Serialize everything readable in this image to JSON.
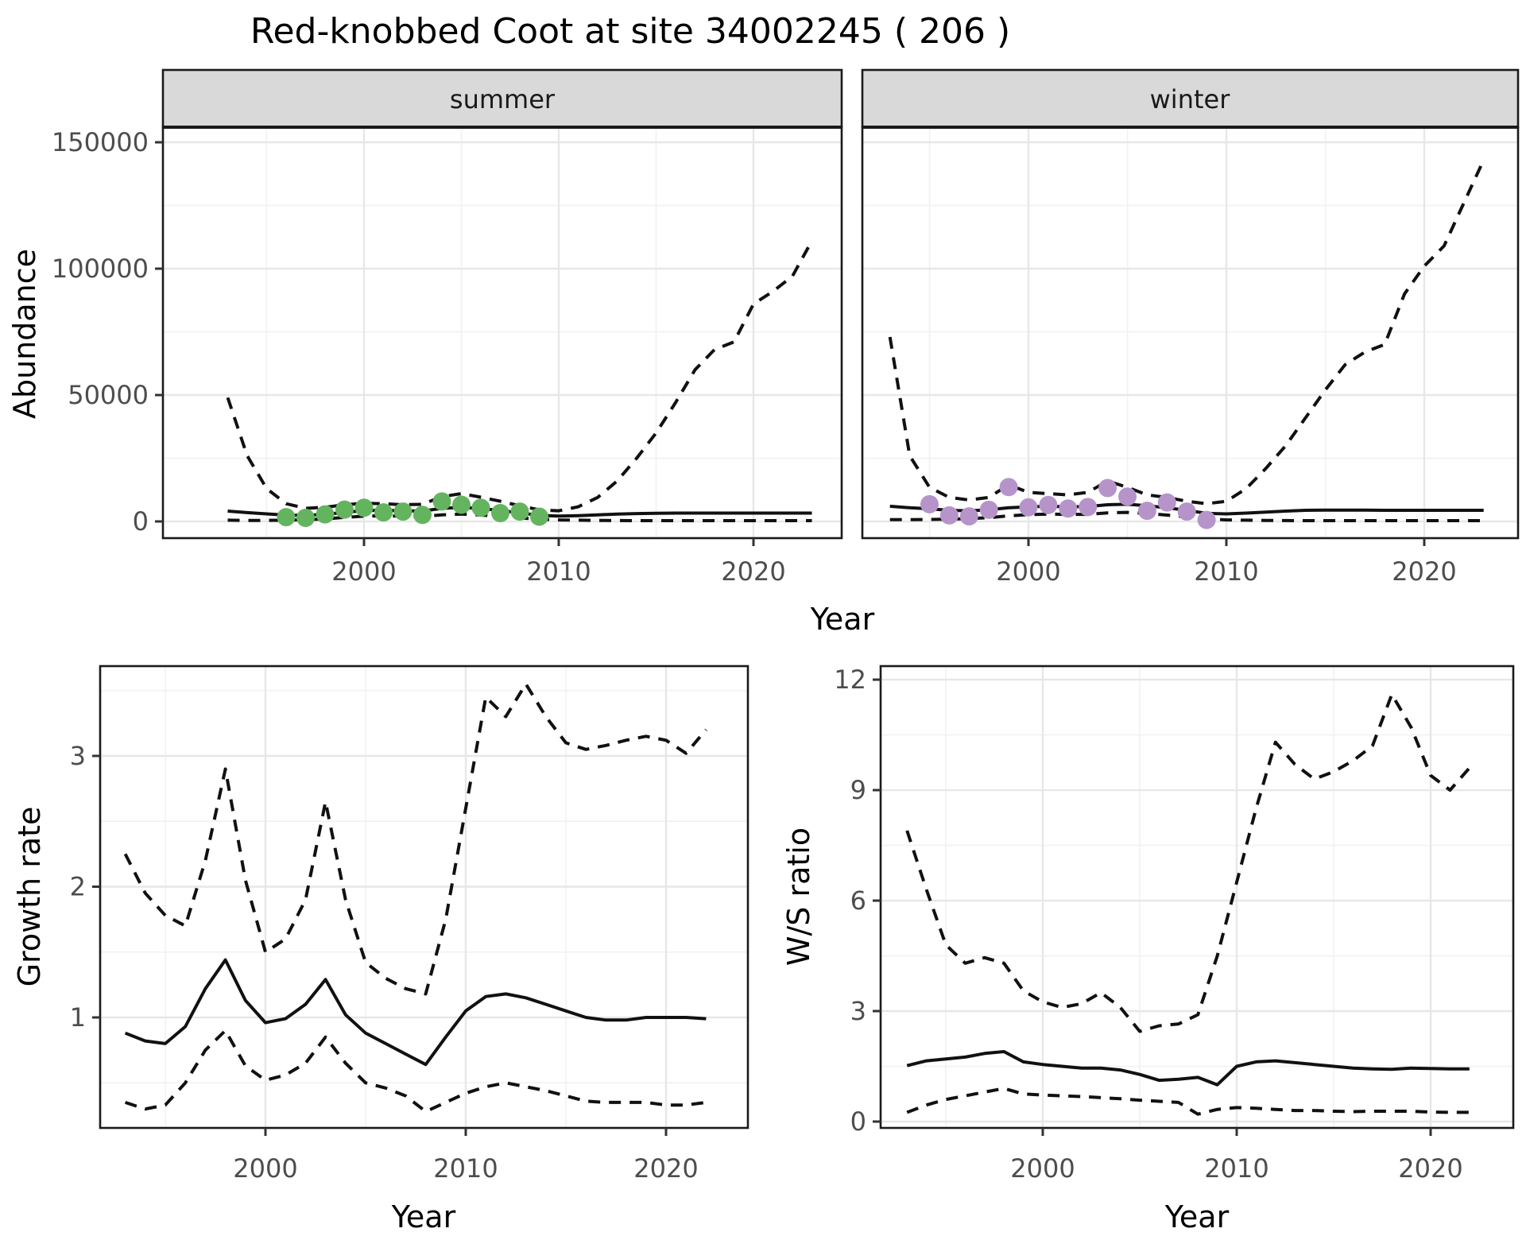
{
  "title": "Red-knobbed Coot at site 34002245 ( 206 )",
  "facets": {
    "summer": "summer",
    "winter": "winter"
  },
  "axes": {
    "abundance": "Abundance",
    "year": "Year",
    "growth": "Growth rate",
    "ws": "W/S ratio"
  },
  "colors": {
    "summer_obs": "#64B45F",
    "winter_obs": "#B694CA",
    "line": "#111111",
    "strip_bg": "#D9D9D9",
    "strip_border": "#1a1a1a",
    "panel_border": "#1a1a1a",
    "grid_major": "#E7E7E7",
    "grid_minor": "#F2F2F2",
    "tick_mark": "#333333",
    "tick_text": "#4d4d4d"
  },
  "chart_data": [
    {
      "id": "abundance-summer",
      "type": "line",
      "facet": "summer",
      "xlabel": "Year",
      "ylabel": "Abundance",
      "x": [
        1993,
        1994,
        1995,
        1996,
        1997,
        1998,
        1999,
        2000,
        2001,
        2002,
        2003,
        2004,
        2005,
        2006,
        2007,
        2008,
        2009,
        2010,
        2011,
        2012,
        2013,
        2014,
        2015,
        2016,
        2017,
        2018,
        2019,
        2020,
        2021,
        2022,
        2023
      ],
      "series": [
        {
          "name": "fit",
          "style": "solid",
          "values": [
            4100,
            3500,
            3000,
            2500,
            2400,
            2800,
            3600,
            4300,
            4400,
            4200,
            4100,
            5200,
            5600,
            5100,
            4300,
            3400,
            2400,
            2100,
            2300,
            2600,
            2900,
            3100,
            3200,
            3300,
            3300,
            3300,
            3300,
            3300,
            3300,
            3300,
            3300
          ]
        },
        {
          "name": "upper-ci",
          "style": "dashed",
          "values": [
            49000,
            26000,
            13000,
            7000,
            5200,
            5600,
            6600,
            7200,
            7000,
            6600,
            6800,
            9800,
            11000,
            9600,
            8000,
            6200,
            4600,
            4200,
            5800,
            9500,
            16000,
            25000,
            35000,
            47000,
            60000,
            68000,
            71000,
            86000,
            91000,
            97000,
            111000
          ]
        },
        {
          "name": "lower-ci",
          "style": "dashed",
          "values": [
            500,
            400,
            400,
            500,
            700,
            1000,
            1600,
            2100,
            2200,
            2100,
            2000,
            2600,
            2900,
            2500,
            2000,
            1400,
            900,
            600,
            500,
            400,
            350,
            300,
            300,
            300,
            300,
            300,
            300,
            300,
            300,
            300,
            300
          ]
        }
      ],
      "observations": {
        "color_key": "summer_obs",
        "x": [
          1996,
          1997,
          1998,
          1999,
          2000,
          2001,
          2002,
          2003,
          2004,
          2005,
          2006,
          2007,
          2008,
          2009
        ],
        "values": [
          1700,
          1400,
          2800,
          4700,
          5400,
          3600,
          3900,
          2600,
          7900,
          6600,
          5400,
          3300,
          3900,
          1900
        ]
      },
      "xticks": [
        2000,
        2010,
        2020
      ],
      "xminor": [
        1995,
        2005,
        2015
      ],
      "yticks": [
        0,
        50000,
        100000,
        150000
      ],
      "yminor": [
        25000,
        75000,
        125000
      ],
      "ylim": [
        -7000,
        156000
      ],
      "xlim": [
        1989.7,
        2024.5
      ]
    },
    {
      "id": "abundance-winter",
      "type": "line",
      "facet": "winter",
      "xlabel": "Year",
      "ylabel": "Abundance",
      "x": [
        1993,
        1994,
        1995,
        1996,
        1997,
        1998,
        1999,
        2000,
        2001,
        2002,
        2003,
        2004,
        2005,
        2006,
        2007,
        2008,
        2009,
        2010,
        2011,
        2012,
        2013,
        2014,
        2015,
        2016,
        2017,
        2018,
        2019,
        2020,
        2021,
        2022,
        2023
      ],
      "series": [
        {
          "name": "fit",
          "style": "solid",
          "values": [
            6000,
            5400,
            5000,
            4400,
            4200,
            4600,
            5400,
            5800,
            6000,
            5800,
            5900,
            6600,
            6800,
            6200,
            5400,
            4400,
            3200,
            3000,
            3300,
            3700,
            4100,
            4400,
            4500,
            4500,
            4500,
            4400,
            4400,
            4400,
            4400,
            4400,
            4400
          ]
        },
        {
          "name": "upper-ci",
          "style": "dashed",
          "values": [
            73000,
            26000,
            13500,
            9500,
            8500,
            9500,
            14500,
            11500,
            11000,
            10500,
            11500,
            16000,
            13500,
            10500,
            9500,
            8000,
            7000,
            8000,
            13000,
            21000,
            30000,
            41000,
            52000,
            62000,
            67000,
            70000,
            90000,
            101000,
            109000,
            126000,
            143000
          ]
        },
        {
          "name": "lower-ci",
          "style": "dashed",
          "values": [
            700,
            700,
            800,
            900,
            1100,
            1500,
            2200,
            2700,
            2900,
            2800,
            2800,
            3400,
            3600,
            3100,
            2500,
            1800,
            1000,
            600,
            500,
            400,
            350,
            300,
            300,
            300,
            300,
            300,
            300,
            300,
            300,
            300,
            300
          ]
        }
      ],
      "observations": {
        "color_key": "winter_obs",
        "x": [
          1995,
          1996,
          1997,
          1998,
          1999,
          2000,
          2001,
          2002,
          2003,
          2004,
          2005,
          2006,
          2007,
          2008,
          2009
        ],
        "values": [
          6800,
          2400,
          2000,
          4600,
          13600,
          5600,
          6500,
          5100,
          5700,
          13200,
          9800,
          4200,
          7500,
          3900,
          600
        ]
      },
      "xticks": [
        2000,
        2010,
        2020
      ],
      "xminor": [
        1995,
        2005,
        2015
      ],
      "yticks": [
        0,
        50000,
        100000,
        150000
      ],
      "yminor": [
        25000,
        75000,
        125000
      ],
      "ylim": [
        -7000,
        156000
      ],
      "xlim": [
        1991.2,
        2024.8
      ]
    },
    {
      "id": "growth-rate",
      "type": "line",
      "facet": null,
      "xlabel": "Year",
      "ylabel": "Growth rate",
      "x": [
        1993,
        1994,
        1995,
        1996,
        1997,
        1998,
        1999,
        2000,
        2001,
        2002,
        2003,
        2004,
        2005,
        2006,
        2007,
        2008,
        2009,
        2010,
        2011,
        2012,
        2013,
        2014,
        2015,
        2016,
        2017,
        2018,
        2019,
        2020,
        2021,
        2022
      ],
      "series": [
        {
          "name": "fit",
          "style": "solid",
          "values": [
            0.88,
            0.82,
            0.8,
            0.93,
            1.22,
            1.44,
            1.13,
            0.96,
            0.99,
            1.1,
            1.29,
            1.02,
            0.88,
            0.8,
            0.72,
            0.64,
            0.85,
            1.05,
            1.16,
            1.18,
            1.15,
            1.1,
            1.05,
            1.0,
            0.98,
            0.98,
            1.0,
            1.0,
            1.0,
            0.99
          ]
        },
        {
          "name": "upper-ci",
          "style": "dashed",
          "values": [
            2.25,
            1.95,
            1.78,
            1.7,
            2.2,
            2.9,
            2.05,
            1.5,
            1.6,
            1.9,
            2.65,
            1.9,
            1.42,
            1.3,
            1.22,
            1.18,
            1.75,
            2.6,
            3.45,
            3.3,
            3.55,
            3.3,
            3.1,
            3.05,
            3.08,
            3.12,
            3.15,
            3.12,
            3.02,
            3.2
          ]
        },
        {
          "name": "lower-ci",
          "style": "dashed",
          "values": [
            0.35,
            0.3,
            0.33,
            0.5,
            0.75,
            0.9,
            0.63,
            0.52,
            0.56,
            0.65,
            0.85,
            0.65,
            0.5,
            0.46,
            0.4,
            0.28,
            0.35,
            0.42,
            0.47,
            0.5,
            0.47,
            0.44,
            0.4,
            0.36,
            0.35,
            0.35,
            0.35,
            0.33,
            0.33,
            0.35
          ]
        }
      ],
      "xticks": [
        2000,
        2010,
        2020
      ],
      "xminor": [
        1995,
        2005,
        2015
      ],
      "yticks": [
        1,
        2,
        3
      ],
      "yminor": [
        0.5,
        1.5,
        2.5,
        3.5
      ],
      "ylim": [
        0.15,
        3.69
      ],
      "xlim": [
        1991.7,
        2024.1
      ]
    },
    {
      "id": "ws-ratio",
      "type": "line",
      "facet": null,
      "xlabel": "Year",
      "ylabel": "W/S ratio",
      "x": [
        1993,
        1994,
        1995,
        1996,
        1997,
        1998,
        1999,
        2000,
        2001,
        2002,
        2003,
        2004,
        2005,
        2006,
        2007,
        2008,
        2009,
        2010,
        2011,
        2012,
        2013,
        2014,
        2015,
        2016,
        2017,
        2018,
        2019,
        2020,
        2021,
        2022
      ],
      "series": [
        {
          "name": "fit",
          "style": "solid",
          "values": [
            1.52,
            1.65,
            1.7,
            1.75,
            1.85,
            1.9,
            1.62,
            1.55,
            1.5,
            1.45,
            1.45,
            1.4,
            1.28,
            1.12,
            1.15,
            1.2,
            1.0,
            1.5,
            1.62,
            1.65,
            1.6,
            1.55,
            1.5,
            1.45,
            1.43,
            1.42,
            1.45,
            1.44,
            1.43,
            1.43
          ]
        },
        {
          "name": "upper-ci",
          "style": "dashed",
          "values": [
            7.9,
            6.3,
            4.8,
            4.3,
            4.45,
            4.3,
            3.55,
            3.25,
            3.1,
            3.2,
            3.5,
            3.1,
            2.45,
            2.6,
            2.65,
            2.9,
            4.5,
            6.5,
            8.5,
            10.3,
            9.7,
            9.3,
            9.5,
            9.8,
            10.2,
            11.6,
            10.7,
            9.4,
            9.0,
            9.6
          ]
        },
        {
          "name": "lower-ci",
          "style": "dashed",
          "values": [
            0.25,
            0.45,
            0.6,
            0.7,
            0.8,
            0.9,
            0.75,
            0.72,
            0.7,
            0.68,
            0.65,
            0.62,
            0.58,
            0.55,
            0.52,
            0.2,
            0.33,
            0.38,
            0.36,
            0.33,
            0.3,
            0.3,
            0.28,
            0.27,
            0.28,
            0.28,
            0.28,
            0.26,
            0.25,
            0.25
          ]
        }
      ],
      "xticks": [
        2000,
        2010,
        2020
      ],
      "xminor": [
        1995,
        2005,
        2015
      ],
      "yticks": [
        0,
        3,
        6,
        9,
        12
      ],
      "yminor": [
        1.5,
        4.5,
        7.5,
        10.5
      ],
      "ylim": [
        -0.2,
        12.5
      ],
      "xlim": [
        1991.6,
        2024.2
      ]
    }
  ]
}
